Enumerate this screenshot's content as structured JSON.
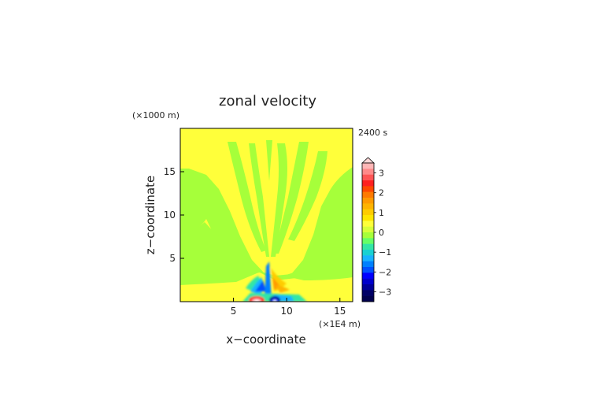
{
  "chart_data": {
    "type": "heatmap",
    "title": "zonal velocity",
    "time_label": "2400 s",
    "xlabel": "x−coordinate",
    "ylabel": "z−coordinate",
    "x_unit": "(×1E4 m)",
    "y_unit": "(×1000 m)",
    "xlim": [
      0,
      16.2
    ],
    "ylim": [
      0,
      20
    ],
    "x_ticks": [
      5,
      10,
      15
    ],
    "y_ticks": [
      5,
      10,
      15
    ],
    "colorbar": {
      "levels": [
        -3.5,
        -3.25,
        -3,
        -2.75,
        -2.5,
        -2.25,
        -2,
        -1.75,
        -1.5,
        -1.25,
        -1,
        -0.75,
        -0.5,
        -0.25,
        0,
        0.25,
        0.5,
        0.75,
        1,
        1.25,
        1.5,
        1.75,
        2,
        2.25,
        2.5,
        2.75,
        3,
        3.25,
        3.5
      ],
      "tick_labels": [
        "3",
        "2",
        "1",
        "0",
        "−1",
        "−2",
        "−3"
      ],
      "tick_values": [
        3,
        2,
        1,
        0,
        -1,
        -2,
        -3
      ],
      "colors": [
        "#ffb6b6",
        "#ff8a8a",
        "#ff5555",
        "#ff2020",
        "#ff4800",
        "#ff7a00",
        "#ff9900",
        "#ffb300",
        "#ffcc00",
        "#ffe600",
        "#ffff3a",
        "#d8ff3a",
        "#a6ff3a",
        "#66ff66",
        "#33e6a6",
        "#1ad1d1",
        "#19b3ff",
        "#0080ff",
        "#0050ff",
        "#0000ff",
        "#0000cc",
        "#000099",
        "#000066",
        "#00004d"
      ],
      "extend": "max"
    },
    "field_description": "contour field of zonal velocity; background near 0, strong +/- dipole near surface at x~7.5-9"
  }
}
